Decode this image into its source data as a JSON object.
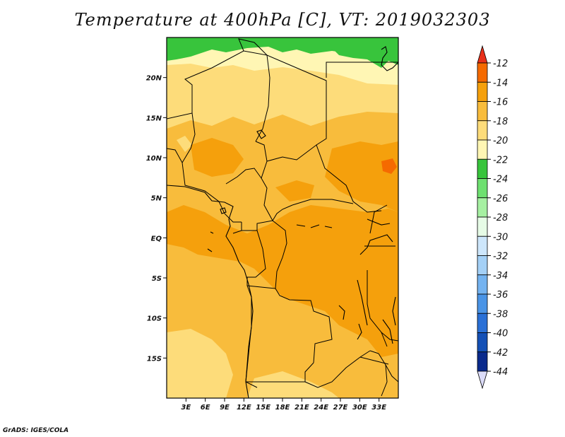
{
  "title": "Temperature at 400hPa [C], VT: 2019032303",
  "credit": "GrADS: IGES/COLA",
  "map": {
    "lon_range": [
      0,
      36
    ],
    "lat_range": [
      -20,
      25
    ],
    "lon_ticks": [
      {
        "value": 3,
        "label": "3E"
      },
      {
        "value": 6,
        "label": "6E"
      },
      {
        "value": 9,
        "label": "9E"
      },
      {
        "value": 12,
        "label": "12E"
      },
      {
        "value": 15,
        "label": "15E"
      },
      {
        "value": 18,
        "label": "18E"
      },
      {
        "value": 21,
        "label": "21E"
      },
      {
        "value": 24,
        "label": "24E"
      },
      {
        "value": 27,
        "label": "27E"
      },
      {
        "value": 30,
        "label": "30E"
      },
      {
        "value": 33,
        "label": "33E"
      }
    ],
    "lat_ticks": [
      {
        "value": 20,
        "label": "20N"
      },
      {
        "value": 15,
        "label": "15N"
      },
      {
        "value": 10,
        "label": "10N"
      },
      {
        "value": 5,
        "label": "5N"
      },
      {
        "value": 0,
        "label": "EQ"
      },
      {
        "value": -5,
        "label": "5S"
      },
      {
        "value": -10,
        "label": "10S"
      },
      {
        "value": -15,
        "label": "15S"
      }
    ]
  },
  "colorbar": {
    "labels": [
      "-12",
      "-14",
      "-16",
      "-18",
      "-20",
      "-22",
      "-24",
      "-26",
      "-28",
      "-30",
      "-32",
      "-34",
      "-36",
      "-38",
      "-40",
      "-42",
      "-44"
    ],
    "colors": [
      "#e8301a",
      "#f56a00",
      "#f5a00c",
      "#f8bc3c",
      "#fddc7a",
      "#fff6b4",
      "#38c43c",
      "#6ee070",
      "#a6f0a2",
      "#e6fbe6",
      "#cde6fb",
      "#a4d0f6",
      "#74b3f0",
      "#4a94e6",
      "#2a70d6",
      "#1450b6",
      "#0a2a8c",
      "#0c1a6c",
      "#dcdcf8"
    ]
  },
  "chart_data": {
    "type": "heatmap",
    "title": "Temperature at 400hPa [C], VT: 2019032303",
    "variable": "Temperature",
    "level": "400hPa",
    "units": "C",
    "valid_time": "2019032303",
    "x_range": [
      0,
      36
    ],
    "y_range": [
      -20,
      25
    ],
    "xlabel": "",
    "ylabel": "",
    "contour_levels": [
      -44,
      -42,
      -40,
      -38,
      -36,
      -34,
      -32,
      -30,
      -28,
      -26,
      -24,
      -22,
      -20,
      -18,
      -16,
      -14,
      -12
    ],
    "dominant_range": [
      -24,
      -12
    ],
    "source": "GrADS: IGES/COLA"
  }
}
